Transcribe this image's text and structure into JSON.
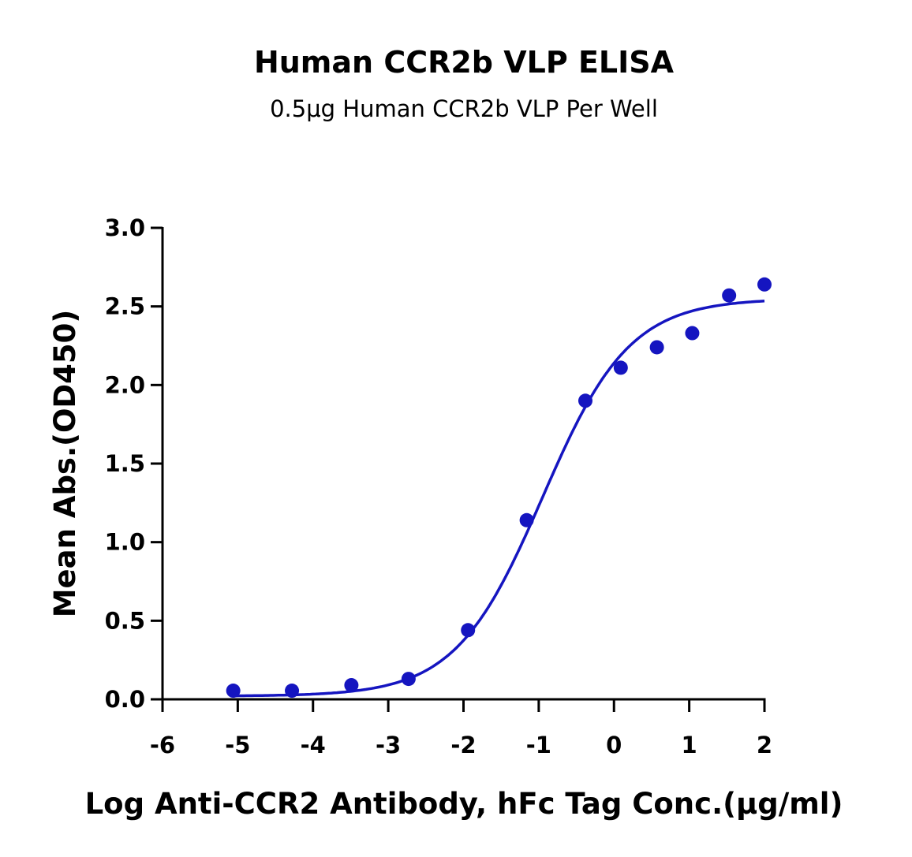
{
  "chart_data": {
    "type": "scatter",
    "title": "Human CCR2b VLP ELISA",
    "subtitle": "0.5μg Human CCR2b VLP Per Well",
    "xlabel": "Log Anti-CCR2 Antibody, hFc Tag Conc.(μg/ml)",
    "ylabel": "Mean Abs.(OD450)",
    "xlim": [
      -6,
      2
    ],
    "ylim": [
      0,
      3.0
    ],
    "x_ticks": [
      "-6",
      "-5",
      "-4",
      "-3",
      "-2",
      "-1",
      "0",
      "1",
      "2"
    ],
    "y_ticks": [
      "0.0",
      "0.5",
      "1.0",
      "1.5",
      "2.0",
      "2.5",
      "3.0"
    ],
    "grid": false,
    "color": "#1515c0",
    "points": {
      "x": [
        -5.06,
        -4.28,
        -3.49,
        -2.73,
        -1.94,
        -1.16,
        -0.38,
        0.09,
        0.57,
        1.04,
        1.53,
        2.0
      ],
      "y": [
        0.055,
        0.055,
        0.09,
        0.13,
        0.44,
        1.14,
        1.9,
        2.11,
        2.24,
        2.33,
        2.57,
        2.64
      ]
    },
    "fit_curve": {
      "model": "4PL",
      "bottom": 0.02,
      "top": 2.55,
      "logEC50": -0.95,
      "hill": 0.75
    }
  }
}
